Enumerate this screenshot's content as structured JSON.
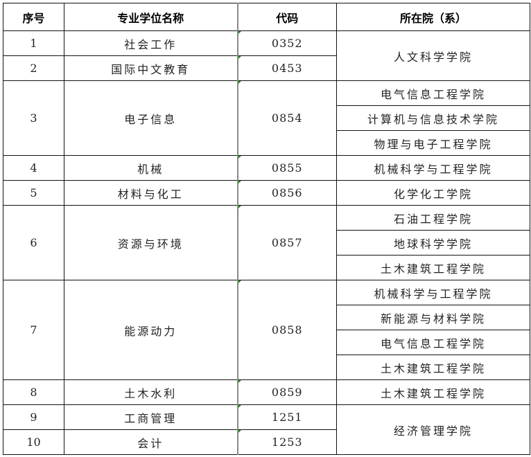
{
  "header": {
    "no": "序号",
    "name": "专业学位名称",
    "code": "代码",
    "college": "所在院（系）"
  },
  "rows": [
    {
      "no": "1",
      "name": "社会工作",
      "code": "0352",
      "college": "人文科学学院"
    },
    {
      "no": "2",
      "name": "国际中文教育",
      "code": "0453"
    },
    {
      "no": "3",
      "name": "电子信息",
      "code": "0854",
      "colleges": [
        "电气信息工程学院",
        "计算机与信息技术学院",
        "物理与电子工程学院"
      ]
    },
    {
      "no": "4",
      "name": "机械",
      "code": "0855",
      "college": "机械科学与工程学院"
    },
    {
      "no": "5",
      "name": "材料与化工",
      "code": "0856",
      "college": "化学化工学院"
    },
    {
      "no": "6",
      "name": "资源与环境",
      "code": "0857",
      "colleges": [
        "石油工程学院",
        "地球科学学院",
        "土木建筑工程学院"
      ]
    },
    {
      "no": "7",
      "name": "能源动力",
      "code": "0858",
      "colleges": [
        "机械科学与工程学院",
        "新能源与材料学院",
        "电气信息工程学院",
        "土木建筑工程学院"
      ]
    },
    {
      "no": "8",
      "name": "土木水利",
      "code": "0859",
      "college": "土木建筑工程学院"
    },
    {
      "no": "9",
      "name": "工商管理",
      "code": "1251",
      "college": "经济管理学院"
    },
    {
      "no": "10",
      "name": "会计",
      "code": "1253"
    }
  ]
}
